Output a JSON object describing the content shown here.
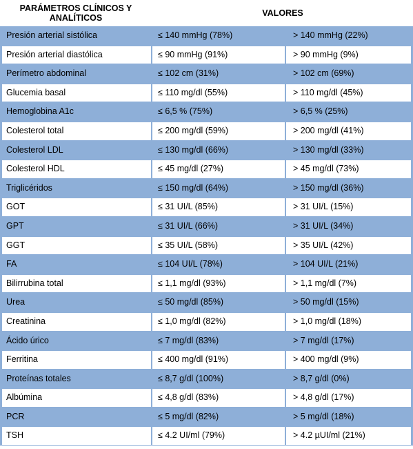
{
  "header": {
    "param_title": "PARÁMETROS CLÍNICOS Y ANALÍTICOS",
    "values_title": "VALORES"
  },
  "rows": [
    {
      "param": "Presión arterial  sistólica",
      "low": "≤ 140 mmHg (78%)",
      "high": "> 140 mmHg (22%)",
      "shade": "blue"
    },
    {
      "param": "Presión  arterial diastólica",
      "low": "≤ 90 mmHg (91%)",
      "high": "> 90 mmHg (9%)",
      "shade": "white"
    },
    {
      "param": "Perímetro abdominal",
      "low": "≤ 102 cm (31%)",
      "high": "> 102 cm (69%)",
      "shade": "blue"
    },
    {
      "param": "Glucemia basal",
      "low": " ≤ 110 mg/dl (55%)",
      "high": "> 110 mg/dl (45%)",
      "shade": "white"
    },
    {
      "param": "Hemoglobina A1c",
      "low": "  ≤ 6,5 % (75%)",
      "high": "> 6,5 % (25%)",
      "shade": "blue"
    },
    {
      "param": "Colesterol total",
      "low": "≤ 200 mg/dl (59%)",
      "high": "> 200 mg/dl (41%)",
      "shade": "white"
    },
    {
      "param": "Colesterol LDL",
      "low": "≤ 130 mg/dl (66%)",
      "high": "> 130 mg/dl (33%)",
      "shade": "blue"
    },
    {
      "param": "Colesterol HDL",
      "low": "≤ 45 mg/dl (27%)",
      "high": "> 45 mg/dl (73%)",
      "shade": "white"
    },
    {
      "param": "Triglicéridos",
      "low": "≤ 150 mg/dl (64%)",
      "high": "> 150 mg/dl (36%)",
      "shade": "blue"
    },
    {
      "param": "GOT",
      "low": "≤ 31 UI/L (85%)",
      "high": "> 31 UI/L (15%)",
      "shade": "white"
    },
    {
      "param": "GPT",
      "low": "≤ 31 UI/L (66%)",
      "high": "> 31 UI/L (34%)",
      "shade": "blue"
    },
    {
      "param": "GGT",
      "low": "≤ 35 UI/L (58%)",
      "high": "> 35 UI/L (42%)",
      "shade": "white"
    },
    {
      "param": "FA",
      "low": "≤ 104 UI/L (78%)",
      "high": "> 104 UI/L (21%)",
      "shade": "blue"
    },
    {
      "param": "Bilirrubina total",
      "low": "≤ 1,1 mg/dl (93%)",
      "high": "> 1,1 mg/dl (7%)",
      "shade": "white"
    },
    {
      "param": "Urea",
      "low": "≤ 50 mg/dl (85%)",
      "high": "> 50 mg/dl (15%)",
      "shade": "blue"
    },
    {
      "param": "Creatinina",
      "low": "≤ 1,0 mg/dl (82%)",
      "high": "> 1,0 mg/dl (18%)",
      "shade": "white"
    },
    {
      "param": "Ácido úrico",
      "low": "≤ 7 mg/dl (83%)",
      "high": "> 7 mg/dl (17%)",
      "shade": "blue"
    },
    {
      "param": "Ferritina",
      "low": "≤ 400 mg/dl (91%)",
      "high": "> 400 mg/dl (9%)",
      "shade": "white"
    },
    {
      "param": "Proteínas totales",
      "low": "≤ 8,7 g/dl (100%)",
      "high": "> 8,7 g/dl (0%)",
      "shade": "blue"
    },
    {
      "param": "Albúmina",
      "low": "≤ 4,8 g/dl (83%)",
      "high": "> 4,8 g/dl (17%)",
      "shade": "white"
    },
    {
      "param": "PCR",
      "low": "  ≤ 5 mg/dl (82%)",
      "high": "> 5 mg/dl (18%)",
      "shade": "blue"
    },
    {
      "param": "TSH",
      "low": "≤ 4.2 UI/ml (79%)",
      "high": "> 4.2 µUI/ml (21%)",
      "shade": "white"
    }
  ]
}
